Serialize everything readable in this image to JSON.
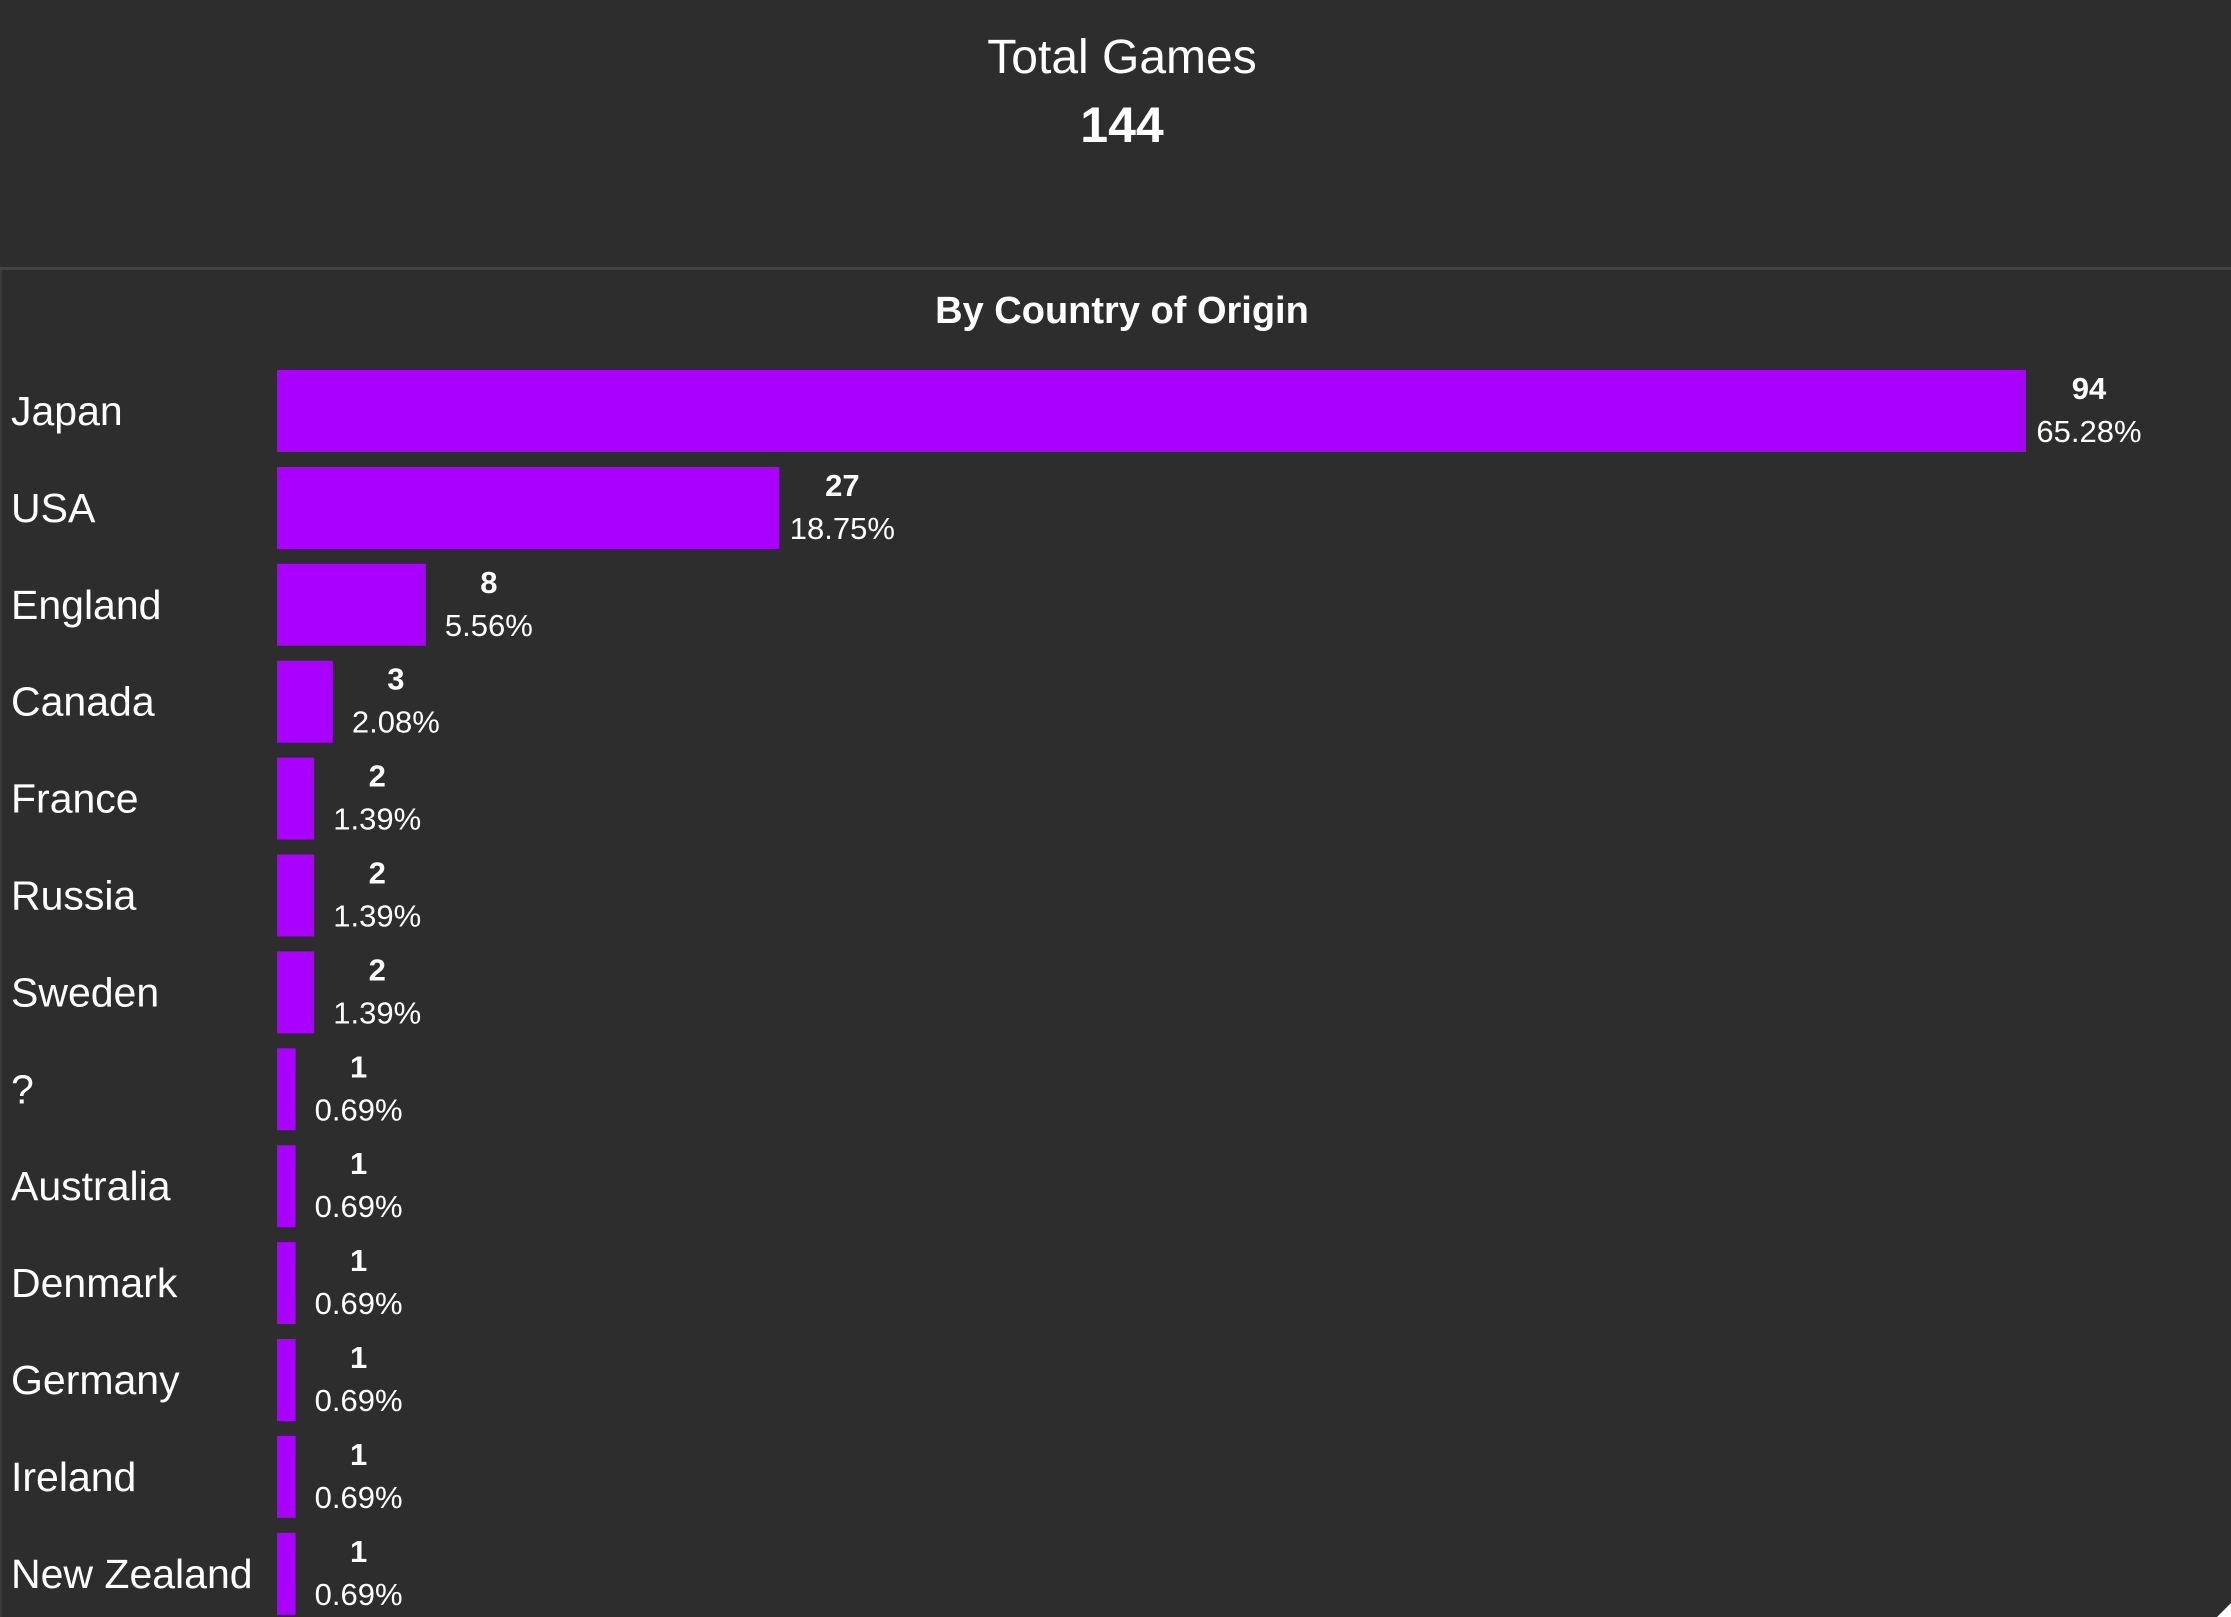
{
  "kpi": {
    "title": "Total Games",
    "value": "144"
  },
  "chart_data": {
    "type": "bar",
    "orientation": "horizontal",
    "title": "By Country of Origin",
    "categories": [
      "Japan",
      "USA",
      "England",
      "Canada",
      "France",
      "Russia",
      "Sweden",
      "?",
      "Australia",
      "Denmark",
      "Germany",
      "Ireland",
      "New Zealand"
    ],
    "values": [
      94,
      27,
      8,
      3,
      2,
      2,
      2,
      1,
      1,
      1,
      1,
      1,
      1
    ],
    "percent_labels": [
      "65.28%",
      "18.75%",
      "5.56%",
      "2.08%",
      "1.39%",
      "1.39%",
      "1.39%",
      "0.69%",
      "0.69%",
      "0.69%",
      "0.69%",
      "0.69%",
      "0.69%"
    ],
    "xlim": [
      0,
      94
    ],
    "grid": false,
    "legend": "none",
    "bar_color": "#aa00ff",
    "background_color": "#2d2d2d"
  }
}
